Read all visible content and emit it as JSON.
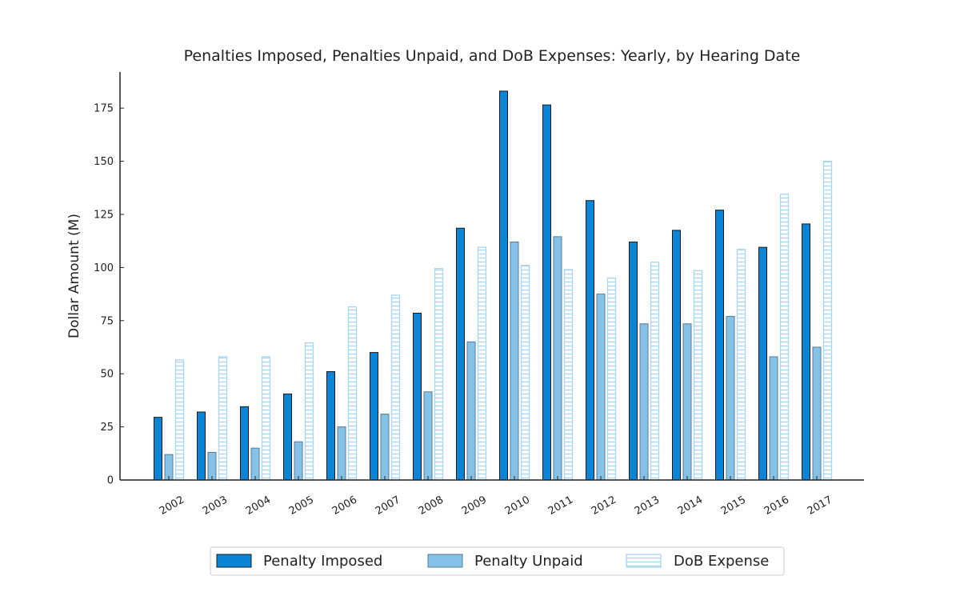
{
  "chart_data": {
    "type": "bar",
    "title": "Penalties Imposed, Penalties Unpaid, and DoB Expenses: Yearly, by Hearing Date",
    "xlabel": "",
    "ylabel": "Dollar Amount (M)",
    "ylim": [
      0,
      192
    ],
    "yticks": [
      0,
      25,
      50,
      75,
      100,
      125,
      150,
      175
    ],
    "grid": false,
    "legend_position": "bottom-center",
    "categories": [
      "2002",
      "2003",
      "2004",
      "2005",
      "2006",
      "2007",
      "2008",
      "2009",
      "2010",
      "2011",
      "2012",
      "2013",
      "2014",
      "2015",
      "2016",
      "2017"
    ],
    "series": [
      {
        "name": "Penalty Imposed",
        "style": "solid",
        "color": "#0a85d6",
        "edge_color": "#1a1a1a",
        "values": [
          29.5,
          32,
          34.5,
          40.5,
          51,
          60,
          78.5,
          118.5,
          183,
          176.5,
          131.5,
          112,
          117.5,
          127,
          109.5,
          120.5
        ]
      },
      {
        "name": "Penalty Unpaid",
        "style": "solid",
        "color": "#85c2e8",
        "edge_color": "#5b7a90",
        "values": [
          12,
          13,
          15,
          18,
          25,
          31,
          41.5,
          65,
          112,
          114.5,
          87.5,
          73.5,
          73.5,
          77,
          58,
          62.5
        ]
      },
      {
        "name": "DoB Expense",
        "style": "hatched",
        "color": "#a9d6f2",
        "edge_color": "#a9d6f2",
        "values": [
          56.5,
          58,
          58,
          64.5,
          81.5,
          87,
          99.5,
          109.5,
          101,
          99,
          95,
          102.5,
          98.5,
          108.5,
          134.5,
          150
        ]
      }
    ]
  }
}
